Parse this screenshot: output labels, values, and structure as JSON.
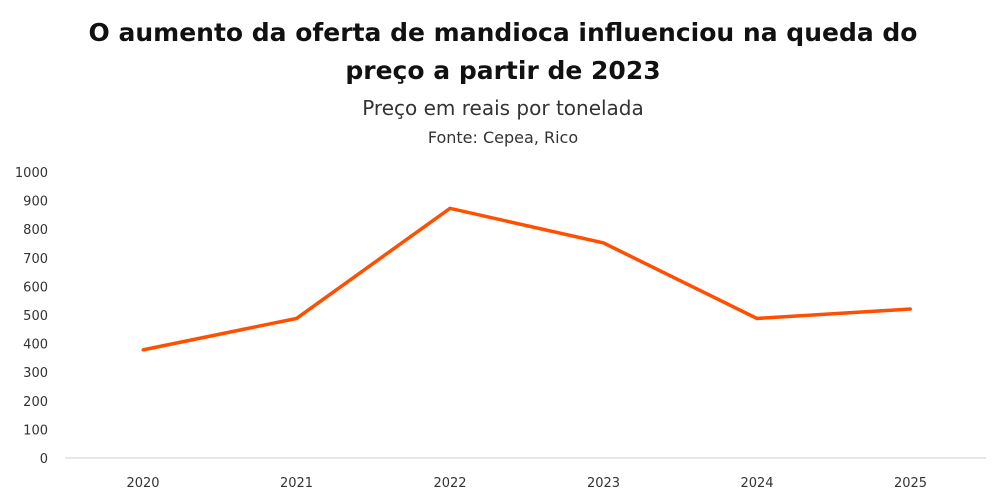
{
  "chart_data": {
    "type": "line",
    "title": "O aumento da oferta de mandioca influenciou na queda do preço a partir de 2023",
    "title_lines": [
      "O aumento da oferta de mandioca influenciou na queda do",
      "preço a partir de 2023"
    ],
    "subtitle": "Preço em reais por tonelada",
    "source": "Fonte: Cepea, Rico",
    "categories": [
      "2020",
      "2021",
      "2022",
      "2023",
      "2024",
      "2025"
    ],
    "series": [
      {
        "name": "Preço",
        "values": [
          378,
          488,
          873,
          752,
          488,
          521
        ],
        "color": "#FF4F00"
      }
    ],
    "ylim": [
      0,
      1000
    ],
    "yticks": [
      "0",
      "100",
      "200",
      "300",
      "400",
      "500",
      "600",
      "700",
      "800",
      "900",
      "1000"
    ],
    "grid": false,
    "xlabel": "",
    "ylabel": ""
  }
}
